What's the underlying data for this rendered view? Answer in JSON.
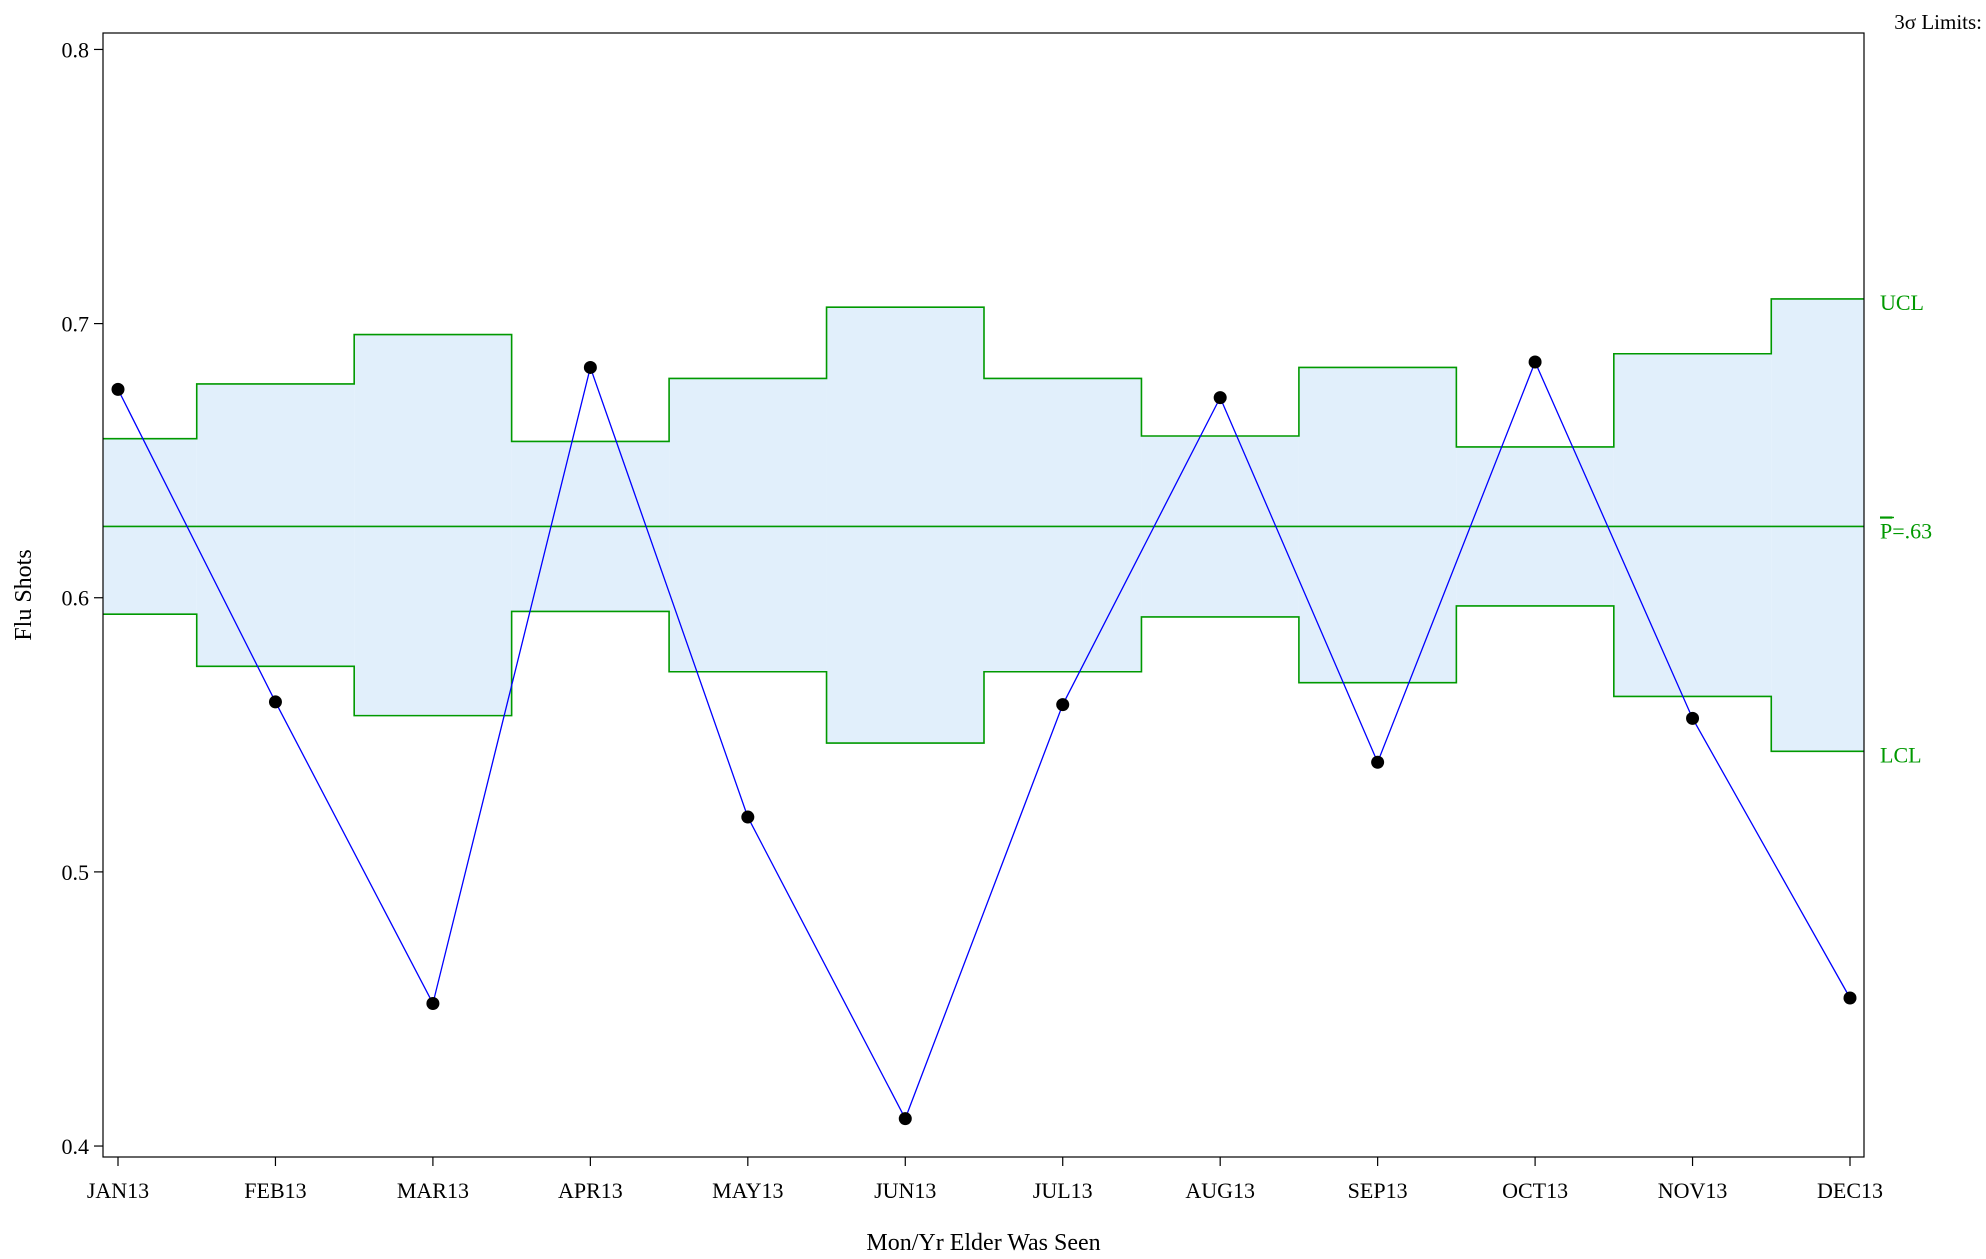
{
  "chart_data": {
    "type": "line",
    "subtype": "p-chart (control chart)",
    "xlabel": "Mon/Yr Elder Was Seen",
    "ylabel": "Flu Shots",
    "limits_header": "3σ Limits:",
    "categories": [
      "JAN13",
      "FEB13",
      "MAR13",
      "APR13",
      "MAY13",
      "JUN13",
      "JUL13",
      "AUG13",
      "SEP13",
      "OCT13",
      "NOV13",
      "DEC13"
    ],
    "series": [
      {
        "values": [
          0.676,
          0.562,
          0.452,
          0.684,
          0.52,
          0.41,
          0.561,
          0.673,
          0.54,
          0.686,
          0.556,
          0.454
        ]
      }
    ],
    "center_line": {
      "value": 0.626,
      "label_prefix": "P",
      "label_suffix": "=.63"
    },
    "ucl": {
      "label": "UCL",
      "values": [
        0.658,
        0.678,
        0.696,
        0.657,
        0.68,
        0.706,
        0.68,
        0.659,
        0.684,
        0.655,
        0.689,
        0.709
      ]
    },
    "lcl": {
      "label": "LCL",
      "values": [
        0.594,
        0.575,
        0.557,
        0.595,
        0.573,
        0.547,
        0.573,
        0.593,
        0.569,
        0.597,
        0.564,
        0.544
      ]
    },
    "ylim": [
      0.396,
      0.806
    ],
    "yticks": [
      0.4,
      0.5,
      0.6,
      0.7,
      0.8
    ],
    "ytick_labels": [
      "0.4",
      "0.5",
      "0.6",
      "0.7",
      "0.8"
    ],
    "grid": false,
    "legend": "none",
    "colors": {
      "series_line": "#0000ff",
      "markers": "#000000",
      "limits": "#009900",
      "band_fill": "#e1effb",
      "axis": "#000000"
    }
  }
}
